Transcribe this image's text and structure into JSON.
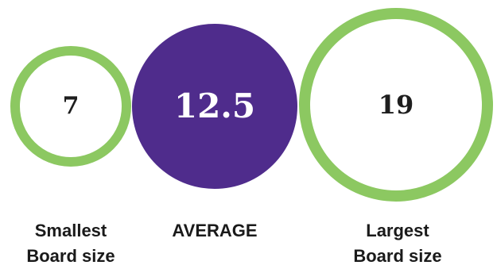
{
  "colors": {
    "ring": "#8cc861",
    "average_fill": "#4f2c8c",
    "average_text": "#ffffff",
    "value_text": "#1e1e1e"
  },
  "smallest": {
    "value": "7",
    "caption_line1": "Smallest",
    "caption_line2": "Board size"
  },
  "average": {
    "value": "12.5",
    "caption": "AVERAGE"
  },
  "largest": {
    "value": "19",
    "caption_line1": "Largest",
    "caption_line2": "Board size"
  }
}
